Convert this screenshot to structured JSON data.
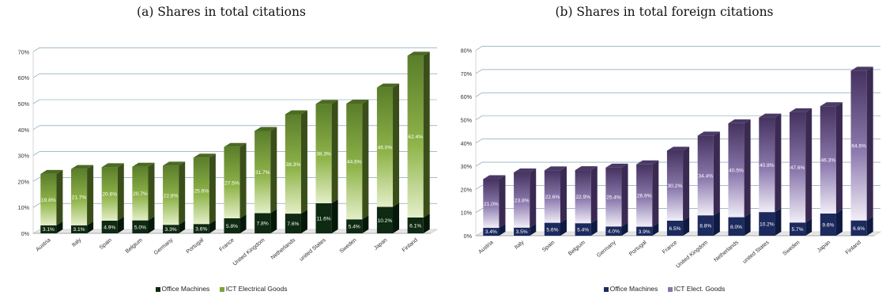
{
  "chart_data": [
    {
      "type": "bar",
      "stacked": true,
      "title": "(a) Shares in total citations",
      "categories": [
        "Austria",
        "Italy",
        "Spain",
        "Belgium",
        "Germany",
        "Portugal",
        "France",
        "United Kingdom",
        "Netherlands",
        "united States",
        "Sweden",
        "Japan",
        "Finland"
      ],
      "series": [
        {
          "name": "Office Machines",
          "values": [
            3.1,
            3.1,
            4.9,
            5.0,
            3.3,
            3.6,
            5.8,
            7.8,
            7.6,
            11.6,
            5.4,
            10.2,
            6.1
          ],
          "labels": [
            "3.1%",
            "3.1%",
            "4.9%",
            "5.0%",
            "3.3%",
            "3.6%",
            "5.8%",
            "7.8%",
            "7.6%",
            "11.6%",
            "5.4%",
            "10.2%",
            "6.1%"
          ],
          "color": "#0f2a12"
        },
        {
          "name": "ICT Electrical Goods",
          "values": [
            19.8,
            21.7,
            20.6,
            20.7,
            22.8,
            25.6,
            27.5,
            31.7,
            38.3,
            38.3,
            44.6,
            46.0,
            62.4
          ],
          "labels": [
            "19.8%",
            "21.7%",
            "20.6%",
            "20.7%",
            "22.8%",
            "25.6%",
            "27.5%",
            "31.7%",
            "38.3%",
            "38.3%",
            "44.6%",
            "46.0%",
            "62.4%"
          ],
          "color": "#5f7d2c"
        }
      ],
      "yticks": [
        "0%",
        "10%",
        "20%",
        "30%",
        "40%",
        "50%",
        "60%",
        "70%"
      ],
      "ylim": [
        0,
        70
      ],
      "legend_position": "bottom"
    },
    {
      "type": "bar",
      "stacked": true,
      "title": "(b) Shares in total foreign citations",
      "categories": [
        "Austria",
        "Italy",
        "Spain",
        "Belgium",
        "Germany",
        "Portugal",
        "France",
        "United Kingdom",
        "Netherlands",
        "united States",
        "Sweden",
        "Japan",
        "Finland"
      ],
      "series": [
        {
          "name": "Office Machines",
          "values": [
            3.4,
            3.5,
            5.6,
            5.4,
            4.0,
            3.9,
            6.5,
            8.8,
            8.0,
            10.2,
            5.7,
            9.6,
            6.6
          ],
          "labels": [
            "3.4%",
            "3.5%",
            "5.6%",
            "5.4%",
            "4.0%",
            "3.9%",
            "6.5%",
            "8.8%",
            "8.0%",
            "10.2%",
            "5.7%",
            "9.6%",
            "6.6%"
          ],
          "color": "#1c2a5e"
        },
        {
          "name": "ICT Elect. Goods",
          "values": [
            21.0,
            23.8,
            22.6,
            22.9,
            25.4,
            26.9,
            30.2,
            34.4,
            40.5,
            40.8,
            47.6,
            46.3,
            64.6
          ],
          "labels": [
            "21.0%",
            "23.8%",
            "22.6%",
            "22.9%",
            "25.4%",
            "26.9%",
            "30.2%",
            "34.4%",
            "40.5%",
            "40.8%",
            "47.6%",
            "46.3%",
            "64.6%"
          ],
          "color": "#5a4677"
        }
      ],
      "yticks": [
        "0%",
        "10%",
        "20%",
        "30%",
        "40%",
        "50%",
        "60%",
        "70%",
        "80%"
      ],
      "ylim": [
        0,
        80
      ],
      "legend_position": "bottom"
    }
  ]
}
